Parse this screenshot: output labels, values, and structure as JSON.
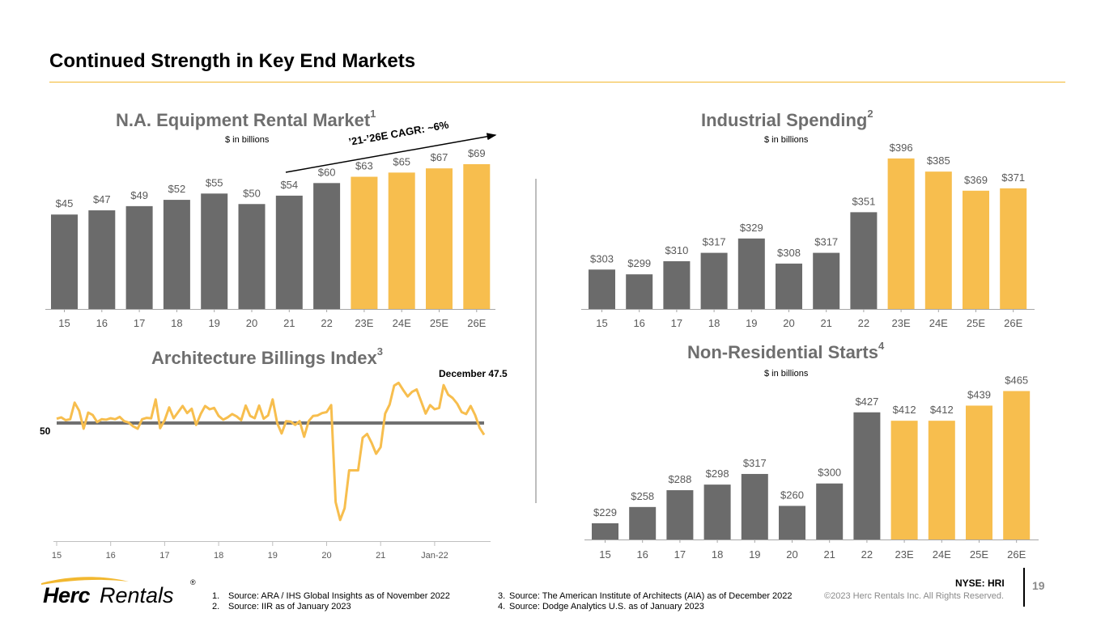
{
  "page": {
    "title": "Continued Strength in Key End Markets",
    "page_number": "19",
    "ticker": "NYSE: HRI",
    "copyright": "©2023 Herc Rentals Inc.  All Rights Reserved.",
    "logo": {
      "bold": "Herc",
      "light": "Rentals",
      "mark": "®"
    },
    "colors": {
      "actual": "#6B6B6B",
      "estimate": "#F7BE4E",
      "accent": "#F2B830",
      "reference_line": "#707070"
    }
  },
  "footnotes": [
    {
      "num": "1.",
      "text": "Source: ARA / IHS Global Insights as of November 2022"
    },
    {
      "num": "2.",
      "text": "Source: IIR as of January 2023"
    },
    {
      "num": "3.",
      "text": "Source:  The American Institute of Architects (AIA) as of December 2022"
    },
    {
      "num": "4.",
      "text": "Source:  Dodge Analytics U.S. as of January 2023"
    }
  ],
  "chart_data": [
    {
      "id": "rental",
      "type": "bar",
      "title": "N.A. Equipment Rental Market",
      "footnote_ref": "1",
      "subtitle": "$ in billions",
      "annotation": "’21-’26E CAGR: ~6%",
      "categories": [
        "15",
        "16",
        "17",
        "18",
        "19",
        "20",
        "21",
        "22",
        "23E",
        "24E",
        "25E",
        "26E"
      ],
      "values": [
        45,
        47,
        49,
        52,
        55,
        50,
        54,
        60,
        63,
        65,
        67,
        69
      ],
      "labels": [
        "$45",
        "$47",
        "$49",
        "$52",
        "$55",
        "$50",
        "$54",
        "$60",
        "$63",
        "$65",
        "$67",
        "$69"
      ],
      "estimate": [
        false,
        false,
        false,
        false,
        false,
        false,
        false,
        false,
        true,
        true,
        true,
        true
      ],
      "ylim": [
        0,
        74
      ]
    },
    {
      "id": "industrial",
      "type": "bar",
      "title": "Industrial Spending",
      "footnote_ref": "2",
      "subtitle": "$ in billions",
      "categories": [
        "15",
        "16",
        "17",
        "18",
        "19",
        "20",
        "21",
        "22",
        "23E",
        "24E",
        "25E",
        "26E"
      ],
      "values": [
        303,
        299,
        310,
        317,
        329,
        308,
        317,
        351,
        396,
        385,
        369,
        371
      ],
      "labels": [
        "$303",
        "$299",
        "$310",
        "$317",
        "$329",
        "$308",
        "$317",
        "$351",
        "$396",
        "$385",
        "$369",
        "$371"
      ],
      "estimate": [
        false,
        false,
        false,
        false,
        false,
        false,
        false,
        false,
        true,
        true,
        true,
        true
      ],
      "ylim": [
        270,
        400
      ]
    },
    {
      "id": "abi",
      "type": "line",
      "title": "Architecture Billings Index",
      "footnote_ref": "3",
      "annotation": "December 47.5",
      "reference_value": 50,
      "reference_label": "50",
      "x_tick_labels": [
        "15",
        "16",
        "17",
        "18",
        "19",
        "20",
        "21",
        "Jan-22"
      ],
      "x_start": "Jan-15",
      "x_end": "Dec-22",
      "values": [
        50.9,
        51.2,
        50.6,
        50.8,
        54.3,
        52.6,
        48.8,
        52.2,
        51.7,
        50.2,
        50.8,
        50.7,
        51.0,
        50.8,
        51.3,
        50.4,
        50.1,
        49.3,
        48.8,
        50.8,
        51.1,
        51.0,
        55.0,
        48.9,
        50.6,
        53.3,
        51.0,
        52.3,
        53.6,
        52.1,
        53.0,
        49.6,
        51.9,
        53.6,
        52.9,
        53.2,
        51.5,
        50.7,
        51.2,
        51.9,
        51.4,
        50.6,
        53.7,
        51.5,
        51.0,
        53.7,
        50.9,
        51.6,
        55.0,
        50.0,
        47.8,
        50.4,
        50.3,
        49.6,
        50.4,
        47.1,
        50.4,
        51.5,
        51.6,
        52.1,
        52.3,
        53.8,
        33.3,
        29.5,
        32.0,
        40.0,
        40.0,
        40.0,
        46.9,
        47.7,
        45.8,
        43.5,
        44.9,
        52.0,
        53.9,
        57.9,
        58.5,
        57.0,
        55.6,
        56.6,
        57.1,
        54.6,
        52.0,
        53.8,
        52.9,
        53.2,
        58.0,
        56.0,
        55.3,
        54.1,
        52.3,
        51.9,
        53.6,
        51.7,
        49.0,
        47.5
      ],
      "ylim": [
        28,
        61
      ]
    },
    {
      "id": "nonres",
      "type": "bar",
      "title": "Non-Residential Starts",
      "footnote_ref": "4",
      "subtitle": "$ in billions",
      "categories": [
        "15",
        "16",
        "17",
        "18",
        "19",
        "20",
        "21",
        "22",
        "23E",
        "24E",
        "25E",
        "26E"
      ],
      "values": [
        229,
        258,
        288,
        298,
        317,
        260,
        300,
        427,
        412,
        412,
        439,
        465
      ],
      "labels": [
        "$229",
        "$258",
        "$288",
        "$298",
        "$317",
        "$260",
        "$300",
        "$427",
        "$412",
        "$412",
        "$439",
        "$465"
      ],
      "estimate": [
        false,
        false,
        false,
        false,
        false,
        false,
        false,
        true,
        true,
        true,
        true,
        true
      ],
      "estimate_note": "22 bar rendered in gray",
      "ylim": [
        200,
        470
      ]
    }
  ]
}
